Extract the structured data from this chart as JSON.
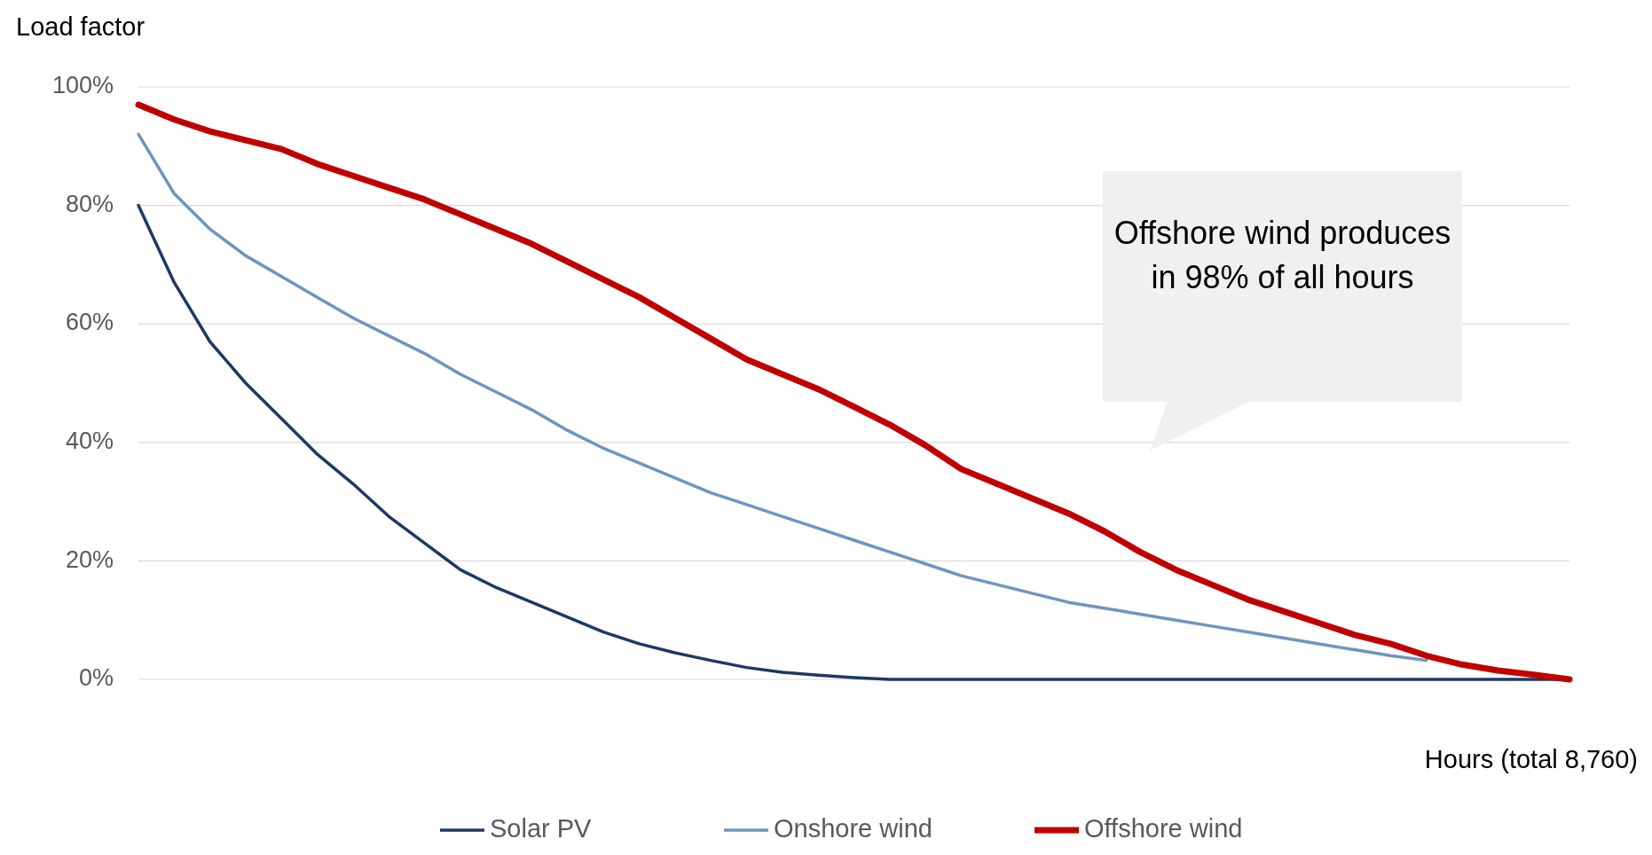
{
  "chart_data": {
    "type": "line",
    "ylabel": "Load factor",
    "xlabel": "Hours (total 8,760)",
    "categories": [
      null,
      null,
      null,
      null,
      null,
      null,
      null,
      null,
      null,
      null,
      null,
      null,
      null,
      null,
      null,
      null,
      null,
      null,
      null,
      null,
      null,
      null,
      null,
      null,
      null,
      null,
      null,
      null,
      null,
      null,
      null,
      null,
      null,
      null,
      null,
      null,
      null,
      null,
      null,
      null,
      null
    ],
    "series": [
      {
        "name": "Solar PV",
        "color": "#1f3864",
        "values": [
          80,
          67,
          57,
          50,
          44,
          38,
          33,
          27.5,
          23,
          18.5,
          15.5,
          13,
          10.5,
          8,
          6,
          4.5,
          3.2,
          2,
          1.2,
          0.7,
          0.3,
          0,
          0,
          0,
          0,
          0,
          0,
          0,
          0,
          0,
          0,
          0,
          0,
          0,
          0,
          0,
          0,
          0,
          0,
          0,
          0
        ]
      },
      {
        "name": "Onshore wind",
        "color": "#6f94c0",
        "values": [
          92,
          82,
          76,
          71.5,
          68,
          64.5,
          61,
          58,
          55,
          51.5,
          48.5,
          45.5,
          42,
          39,
          36.5,
          34,
          31.5,
          29.5,
          27.5,
          25.5,
          23.5,
          21.5,
          19.5,
          17.5,
          16,
          14.5,
          13,
          12,
          11,
          10,
          9,
          8,
          7,
          6,
          5,
          4,
          3.2,
          null,
          null,
          null,
          null
        ]
      },
      {
        "name": "Offshore wind",
        "color": "#c00000",
        "values": [
          97,
          94.5,
          92.5,
          91,
          89.5,
          87,
          85,
          83,
          81,
          78.5,
          76,
          73.5,
          70.5,
          67.5,
          64.5,
          61,
          57.5,
          54,
          51.5,
          49,
          46,
          43,
          39.5,
          35.5,
          33,
          30.5,
          28,
          25,
          21.5,
          18.5,
          16,
          13.5,
          11.5,
          9.5,
          7.5,
          6,
          4,
          2.5,
          1.5,
          0.8,
          0
        ]
      }
    ],
    "ylim": [
      0,
      100
    ],
    "yticks": [
      {
        "value": 0,
        "label": "0%"
      },
      {
        "value": 20,
        "label": "20%"
      },
      {
        "value": 40,
        "label": "40%"
      },
      {
        "value": 60,
        "label": "60%"
      },
      {
        "value": 80,
        "label": "80%"
      },
      {
        "value": 100,
        "label": "100%"
      }
    ],
    "tick_labels": "y",
    "grid": "y",
    "legend": "bottom",
    "line_style": "solid",
    "annotations": [
      "Offshore wind produces in 98% of all hours"
    ]
  }
}
